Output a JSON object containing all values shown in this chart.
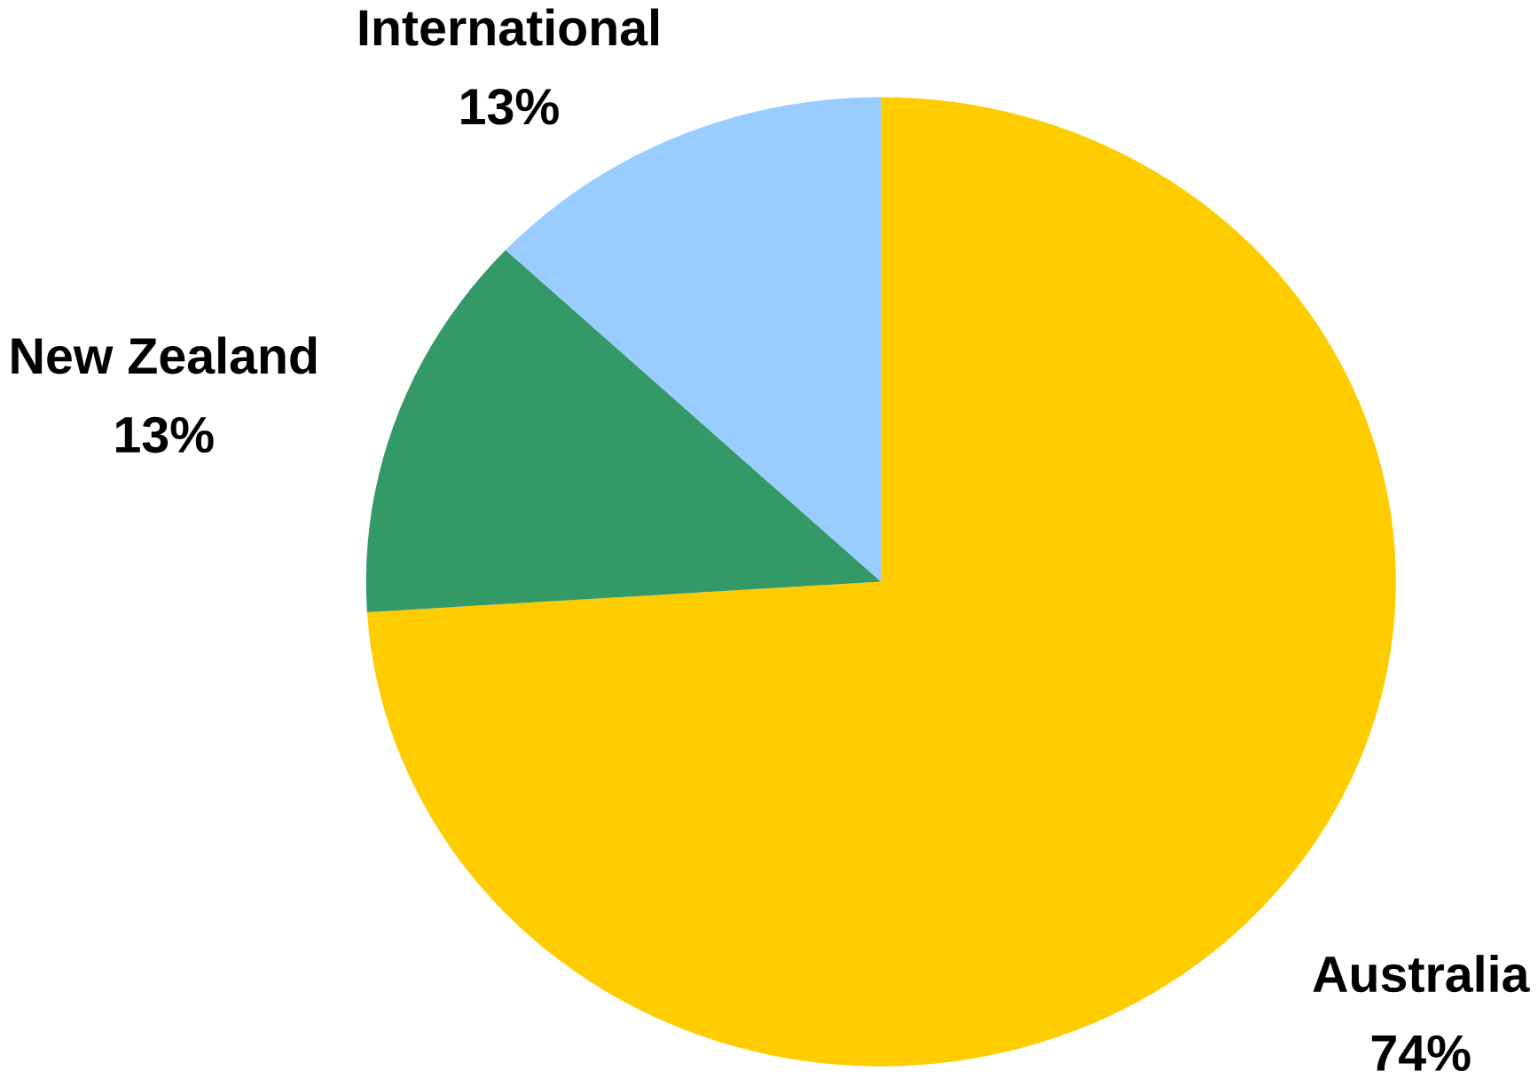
{
  "chart_data": {
    "type": "pie",
    "categories": [
      "Australia",
      "New Zealand",
      "International"
    ],
    "values": [
      74,
      13,
      13
    ],
    "colors": [
      "#ffcc00",
      "#339966",
      "#99ccff"
    ],
    "value_labels": [
      "74%",
      "13%",
      "13%"
    ]
  }
}
